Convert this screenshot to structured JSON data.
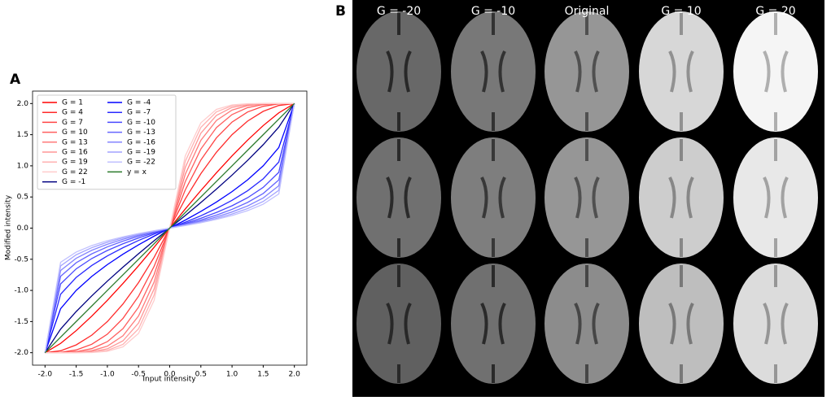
{
  "panel_labels": [
    "A",
    "B"
  ],
  "chart_data": {
    "type": "line",
    "xlabel": "Input intensity",
    "ylabel": "Modified intensity",
    "x": [
      -2,
      -1.75,
      -1.5,
      -1.25,
      -1,
      -0.75,
      -0.5,
      -0.25,
      0,
      0.25,
      0.5,
      0.75,
      1,
      1.25,
      1.5,
      1.75,
      2
    ],
    "xlim": [
      -2.2,
      2.2
    ],
    "ylim": [
      -2.2,
      2.2
    ],
    "xticks": [
      {
        "value": -2,
        "label": "-2.0"
      },
      {
        "value": -1.5,
        "label": "-1.5"
      },
      {
        "value": -1,
        "label": "-1.0"
      },
      {
        "value": -0.5,
        "label": "-0.5"
      },
      {
        "value": 0,
        "label": "0.0"
      },
      {
        "value": 0.5,
        "label": "0.5"
      },
      {
        "value": 1,
        "label": "1.0"
      },
      {
        "value": 1.5,
        "label": "1.5"
      },
      {
        "value": 2,
        "label": "2.0"
      }
    ],
    "yticks": [
      {
        "value": -2,
        "label": "-2.0"
      },
      {
        "value": -1.5,
        "label": "-1.5"
      },
      {
        "value": -1,
        "label": "-1.0"
      },
      {
        "value": -0.5,
        "label": "-0.5"
      },
      {
        "value": 0,
        "label": "0.0"
      },
      {
        "value": 0.5,
        "label": "0.5"
      },
      {
        "value": 1,
        "label": "1.0"
      },
      {
        "value": 1.5,
        "label": "1.5"
      },
      {
        "value": 2,
        "label": "2.0"
      }
    ],
    "grid": false,
    "legend": "upper left",
    "series": [
      {
        "name": "G = 1",
        "color": "#ff0000",
        "values": [
          -2,
          -1.851,
          -1.646,
          -1.413,
          -1.159,
          -0.888,
          -0.604,
          -0.308,
          0,
          0.308,
          0.604,
          0.888,
          1.159,
          1.413,
          1.646,
          1.851,
          2
        ]
      },
      {
        "name": "G = 4",
        "color": "#ff2a2a",
        "values": [
          -2,
          -1.969,
          -1.875,
          -1.719,
          -1.5,
          -1.219,
          -0.875,
          -0.469,
          0,
          0.469,
          0.875,
          1.219,
          1.5,
          1.719,
          1.875,
          1.969,
          2
        ]
      },
      {
        "name": "G = 7",
        "color": "#ff4545",
        "values": [
          -2,
          -1.994,
          -1.956,
          -1.865,
          -1.703,
          -1.45,
          -1.094,
          -0.614,
          0,
          0.614,
          1.094,
          1.45,
          1.703,
          1.865,
          1.956,
          1.994,
          2
        ]
      },
      {
        "name": "G = 10",
        "color": "#ff6060",
        "values": [
          -2,
          -1.999,
          -1.984,
          -1.935,
          -1.823,
          -1.614,
          -1.27,
          -0.746,
          0,
          0.746,
          1.27,
          1.614,
          1.823,
          1.935,
          1.984,
          1.999,
          2
        ]
      },
      {
        "name": "G = 13",
        "color": "#ff7b7b",
        "values": [
          -2,
          -2.0,
          -1.995,
          -1.969,
          -1.895,
          -1.729,
          -1.411,
          -0.866,
          0,
          0.866,
          1.411,
          1.729,
          1.895,
          1.969,
          1.995,
          2.0,
          2
        ]
      },
      {
        "name": "G = 16",
        "color": "#ff9797",
        "values": [
          -2,
          -2.0,
          -1.998,
          -1.985,
          -1.938,
          -1.81,
          -1.525,
          -0.974,
          0,
          0.974,
          1.525,
          1.81,
          1.938,
          1.985,
          1.998,
          2.0,
          2
        ]
      },
      {
        "name": "G = 19",
        "color": "#ffb2b2",
        "values": [
          -2,
          -2.0,
          -1.999,
          -1.993,
          -1.963,
          -1.866,
          -1.617,
          -1.072,
          0,
          1.072,
          1.617,
          1.866,
          1.963,
          1.993,
          1.999,
          2.0,
          2
        ]
      },
      {
        "name": "G = 22",
        "color": "#ffcccc",
        "values": [
          -2,
          -2.0,
          -2.0,
          -1.997,
          -1.978,
          -1.906,
          -1.691,
          -1.16,
          0,
          1.16,
          1.691,
          1.906,
          1.978,
          1.997,
          2.0,
          2.0,
          2
        ]
      },
      {
        "name": "G = -1",
        "color": "#000080",
        "values": [
          -2,
          -1.621,
          -1.34,
          -1.088,
          -0.851,
          -0.627,
          -0.411,
          -0.202,
          0,
          0.202,
          0.411,
          0.627,
          0.851,
          1.088,
          1.34,
          1.621,
          2
        ]
      },
      {
        "name": "G = -4",
        "color": "#0000ff",
        "values": [
          -2,
          -1.293,
          -1.0,
          -0.775,
          -0.586,
          -0.419,
          -0.268,
          -0.129,
          0,
          0.129,
          0.268,
          0.419,
          0.586,
          0.775,
          1.0,
          1.293,
          2
        ]
      },
      {
        "name": "G = -7",
        "color": "#2a2aff",
        "values": [
          -2,
          -1.061,
          -0.792,
          -0.6,
          -0.446,
          -0.315,
          -0.198,
          -0.095,
          0,
          0.095,
          0.198,
          0.315,
          0.446,
          0.6,
          0.792,
          1.061,
          2
        ]
      },
      {
        "name": "G = -10",
        "color": "#4848ff",
        "values": [
          -2,
          -0.896,
          -0.654,
          -0.488,
          -0.359,
          -0.251,
          -0.158,
          -0.075,
          0,
          0.075,
          0.158,
          0.251,
          0.359,
          0.488,
          0.654,
          0.896,
          2
        ]
      },
      {
        "name": "G = -13",
        "color": "#6666ff",
        "values": [
          -2,
          -0.774,
          -0.556,
          -0.413,
          -0.301,
          -0.209,
          -0.131,
          -0.062,
          0,
          0.062,
          0.131,
          0.209,
          0.301,
          0.413,
          0.556,
          0.774,
          2
        ]
      },
      {
        "name": "G = -16",
        "color": "#8484ff",
        "values": [
          -2,
          -0.68,
          -0.484,
          -0.356,
          -0.259,
          -0.179,
          -0.112,
          -0.053,
          0,
          0.053,
          0.112,
          0.179,
          0.259,
          0.356,
          0.484,
          0.68,
          2
        ]
      },
      {
        "name": "G = -19",
        "color": "#a2a2ff",
        "values": [
          -2,
          -0.607,
          -0.428,
          -0.314,
          -0.227,
          -0.157,
          -0.098,
          -0.046,
          0,
          0.046,
          0.098,
          0.157,
          0.227,
          0.314,
          0.428,
          0.607,
          2
        ]
      },
      {
        "name": "G = -22",
        "color": "#c0c0ff",
        "values": [
          -2,
          -0.548,
          -0.384,
          -0.28,
          -0.202,
          -0.14,
          -0.087,
          -0.041,
          0,
          0.041,
          0.087,
          0.14,
          0.202,
          0.28,
          0.384,
          0.548,
          2
        ]
      },
      {
        "name": "y = x",
        "color": "#2a7a2a",
        "values": [
          -2,
          -1.75,
          -1.5,
          -1.25,
          -1,
          -0.75,
          -0.5,
          -0.25,
          0,
          0.25,
          0.5,
          0.75,
          1,
          1.25,
          1.5,
          1.75,
          2
        ]
      }
    ]
  },
  "image_grid": {
    "column_titles": [
      "G = -20",
      "G = -10",
      "Original",
      "G = 10",
      "G = 20"
    ]
  }
}
